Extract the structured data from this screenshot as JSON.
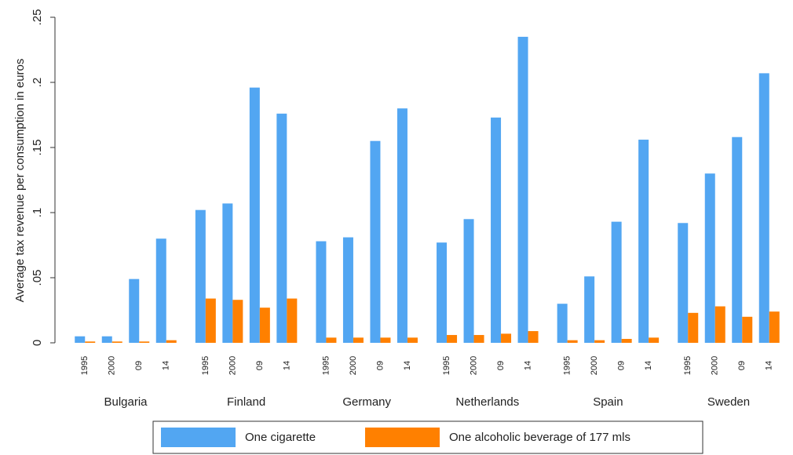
{
  "chart_data": {
    "type": "bar",
    "y_label": "Average tax revenue per consumption in euros",
    "groups": [
      "Bulgaria",
      "Finland",
      "Germany",
      "Netherlands",
      "Spain",
      "Sweden"
    ],
    "categories": [
      "1995",
      "2000",
      "09",
      "14",
      "1995",
      "2000",
      "09",
      "14",
      "1995",
      "2000",
      "09",
      "14",
      "1995",
      "2000",
      "09",
      "14",
      "1995",
      "2000",
      "09",
      "14",
      "1995",
      "2000",
      "09",
      "14"
    ],
    "series": [
      {
        "name": "One cigarette",
        "color": "#52a6f2",
        "values": [
          0.005,
          0.005,
          0.049,
          0.08,
          0.102,
          0.107,
          0.196,
          0.176,
          0.078,
          0.081,
          0.155,
          0.18,
          0.077,
          0.095,
          0.173,
          0.235,
          0.03,
          0.051,
          0.093,
          0.156,
          0.092,
          0.13,
          0.158,
          0.207
        ]
      },
      {
        "name": "One alcoholic beverage of 177 mls",
        "color": "#ff8000",
        "values": [
          0.001,
          0.001,
          0.001,
          0.002,
          0.034,
          0.033,
          0.027,
          0.034,
          0.004,
          0.004,
          0.004,
          0.004,
          0.006,
          0.006,
          0.007,
          0.009,
          0.002,
          0.002,
          0.003,
          0.004,
          0.023,
          0.028,
          0.02,
          0.024
        ]
      }
    ],
    "ylim": [
      0,
      0.25
    ],
    "yticks": [
      0,
      {
        "value": 0.05,
        "label": ".05"
      },
      {
        "value": 0.1,
        "label": ".1"
      },
      {
        "value": 0.15,
        "label": ".15"
      },
      {
        "value": 0.2,
        "label": ".2"
      },
      {
        "value": 0.25,
        "label": ".25"
      }
    ],
    "legend": "bottom"
  }
}
